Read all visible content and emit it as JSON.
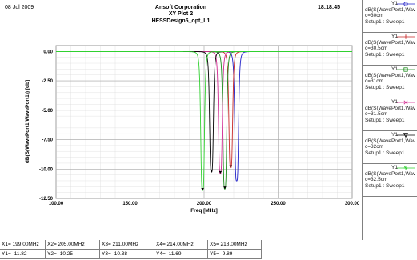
{
  "header": {
    "date": "08 Jul 2009",
    "company": "Ansoft Corporation",
    "plot_title": "XY Plot 2",
    "design_name": "HFSSDesign5_opt_L1",
    "time": "18:18:45"
  },
  "chart_data": {
    "type": "line",
    "xlabel": "Freq [MHz]",
    "ylabel": "dB(S(WavePort1,WavePort1)) [db]",
    "xlim": [
      100,
      300
    ],
    "ylim": [
      -12.5,
      0.5
    ],
    "x_ticks": [
      100,
      150,
      200,
      250,
      300
    ],
    "x_tick_labels": [
      "100.00",
      "150.00",
      "200.00",
      "250.00",
      "300.00"
    ],
    "y_ticks": [
      0,
      -2.5,
      -5,
      -7.5,
      -10,
      -12.5
    ],
    "y_tick_labels": [
      "0.00",
      "-2.50",
      "-5.00",
      "-7.50",
      "-10.00",
      "-12.50"
    ],
    "grid": true,
    "series": [
      {
        "name": "Y1",
        "expr": "dB(S(WavePort1,Wav",
        "param": "c=30cm",
        "setup": "Setup1 : Sweep1",
        "color": "#2020c8",
        "marker": "circle",
        "center": 222,
        "min": -11.0,
        "width": 1.4
      },
      {
        "name": "Y1",
        "expr": "dB(S(WavePort1,Wav",
        "param": "c=30.5cm",
        "setup": "Setup1 : Sweep1",
        "color": "#c82828",
        "marker": "line",
        "center": 218,
        "min": -9.89,
        "width": 1.4
      },
      {
        "name": "Y1",
        "expr": "dB(S(WavePort1,Wav",
        "param": "c=31cm",
        "setup": "Setup1 : Sweep1",
        "color": "#1a8a1a",
        "marker": "square",
        "center": 214,
        "min": -11.69,
        "width": 1.4
      },
      {
        "name": "Y1",
        "expr": "dB(S(WavePort1,Wav",
        "param": "c=31.5cm",
        "setup": "Setup1 : Sweep1",
        "color": "#d02890",
        "marker": "x",
        "center": 211,
        "min": -10.38,
        "width": 1.4
      },
      {
        "name": "Y1",
        "expr": "dB(S(WavePort1,Wav",
        "param": "c=32cm",
        "setup": "Setup1 : Sweep1",
        "color": "#000000",
        "marker": "triangle",
        "center": 205,
        "min": -10.25,
        "width": 1.4
      },
      {
        "name": "Y1",
        "expr": "dB(S(WavePort1,Wav",
        "param": "c=32.5cm",
        "setup": "Setup1 : Sweep1",
        "color": "#30d030",
        "marker": "star",
        "center": 199,
        "min": -11.82,
        "width": 1.4
      }
    ],
    "markers": [
      {
        "x_label": "X1= 199.00MHz",
        "y_label": "Y1= -11.82",
        "x": 199,
        "y": -11.82
      },
      {
        "x_label": "X2= 205.00MHz",
        "y_label": "Y2= -10.25",
        "x": 205,
        "y": -10.25
      },
      {
        "x_label": "X3= 211.00MHz",
        "y_label": "Y3= -10.38",
        "x": 211,
        "y": -10.38
      },
      {
        "x_label": "X4= 214.00MHz",
        "y_label": "Y4= -11.69",
        "x": 214,
        "y": -11.69
      },
      {
        "x_label": "X5= 218.00MHz",
        "y_label": "Y5= -9.89",
        "x": 218,
        "y": -9.89
      }
    ]
  }
}
